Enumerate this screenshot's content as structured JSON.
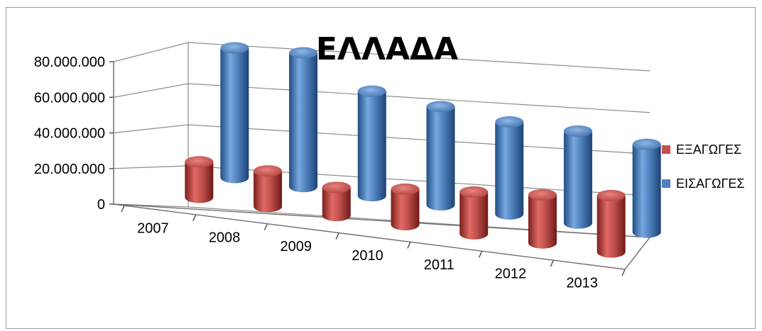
{
  "chart_data": {
    "type": "bar",
    "subtype": "3d-cylinder",
    "title": "ΕΛΛΑΔΑ",
    "xlabel": "",
    "ylabel": "",
    "categories": [
      "2007",
      "2008",
      "2009",
      "2010",
      "2011",
      "2012",
      "2013"
    ],
    "y_ticks": [
      "0",
      "20.000.000",
      "40.000.000",
      "60.000.000",
      "80.000.000"
    ],
    "ylim": [
      0,
      80000000
    ],
    "grid": true,
    "legend_position": "right",
    "series": [
      {
        "name": "ΕΞΑΓΩΓΕΣ",
        "color": "#c0504d",
        "values": [
          17000000,
          17000000,
          13500000,
          17000000,
          20000000,
          23000000,
          27000000
        ]
      },
      {
        "name": "ΕΙΣΑΓΩΓΕΣ",
        "color": "#4f81bd",
        "values": [
          62000000,
          64000000,
          50000000,
          47000000,
          44000000,
          44000000,
          42000000
        ]
      }
    ]
  }
}
